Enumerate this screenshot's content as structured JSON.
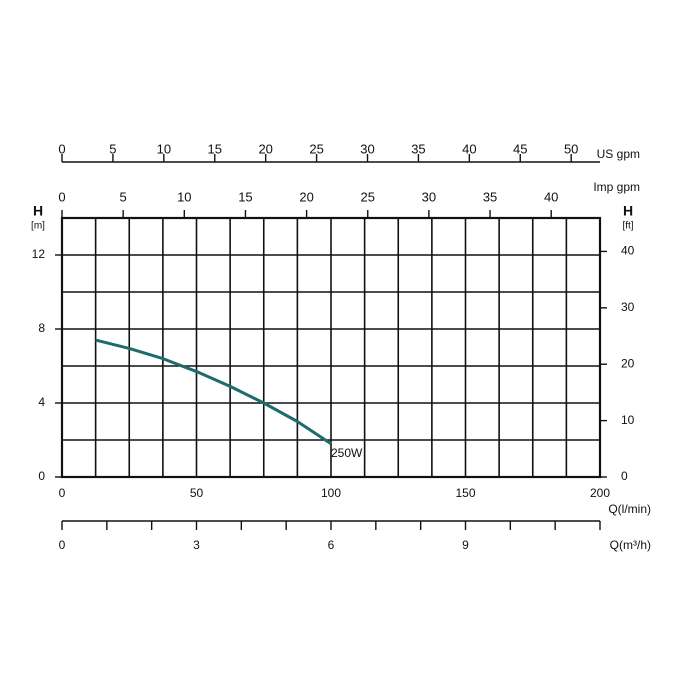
{
  "chart_data": {
    "type": "line",
    "x": [
      12.5,
      25,
      37.5,
      50,
      62.5,
      75,
      87.5,
      100
    ],
    "series": [
      {
        "name": "250W",
        "color": "#1d6b6b",
        "values": [
          7.4,
          6.95,
          6.4,
          5.7,
          4.9,
          4.0,
          3.0,
          1.8
        ]
      }
    ],
    "xlabel": "Q(l/min)",
    "xlim": [
      0,
      200
    ],
    "xticks": [
      0,
      50,
      100,
      150,
      200
    ],
    "xgrid": [
      0,
      12.5,
      25,
      37.5,
      50,
      62.5,
      75,
      87.5,
      100,
      112.5,
      125,
      137.5,
      150,
      162.5,
      175,
      187.5,
      200
    ],
    "ylabel": "H",
    "ylabel_unit": "[m]",
    "ylim": [
      0,
      14
    ],
    "yticks": [
      0,
      4,
      8,
      12
    ],
    "ygrid": [
      0,
      2,
      4,
      6,
      8,
      10,
      12,
      14
    ],
    "y2label": "H",
    "y2label_unit": "[ft]",
    "y2lim": [
      0,
      45.93
    ],
    "y2ticks": [
      0,
      10,
      20,
      30,
      40
    ],
    "top_axes": [
      {
        "label": "US gpm",
        "xlim": [
          0,
          52.83
        ],
        "xticks": [
          0,
          5,
          10,
          15,
          20,
          25,
          30,
          35,
          40,
          45,
          50
        ]
      },
      {
        "label": "Imp gpm",
        "xlim": [
          0,
          43.99
        ],
        "xticks": [
          0,
          5,
          10,
          15,
          20,
          25,
          30,
          35,
          40
        ]
      }
    ],
    "bottom_axis": {
      "label": "Q(m³/h)",
      "xlim": [
        0,
        12
      ],
      "xticks": [
        0,
        3,
        6,
        9
      ],
      "minor_ticks": [
        0,
        1,
        2,
        3,
        4,
        5,
        6,
        7,
        8,
        9,
        10,
        11,
        12
      ]
    }
  }
}
